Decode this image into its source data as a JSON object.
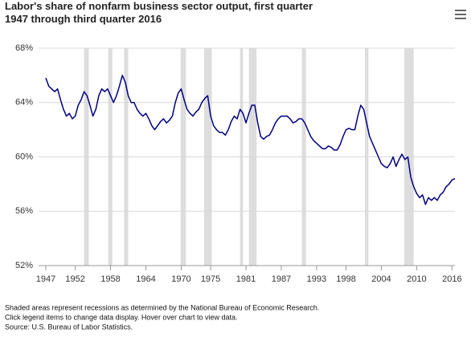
{
  "chart_data": {
    "type": "line",
    "title": "Labor's share of nonfarm business sector output, first quarter 1947 through third quarter 2016",
    "notes": [
      "Shaded areas represent recessions as determined by the National Bureau of Economic Research.",
      "Click legend items to change data display. Hover over chart to view data.",
      "Source: U.S. Bureau of Labor Statistics."
    ],
    "x": [
      1947,
      1947.5,
      1948,
      1948.5,
      1949,
      1949.5,
      1950,
      1950.5,
      1951,
      1951.5,
      1952,
      1952.5,
      1953,
      1953.5,
      1954,
      1954.5,
      1955,
      1955.5,
      1956,
      1956.5,
      1957,
      1957.5,
      1958,
      1958.5,
      1959,
      1959.5,
      1960,
      1960.5,
      1961,
      1961.5,
      1962,
      1962.5,
      1963,
      1963.5,
      1964,
      1964.5,
      1965,
      1965.5,
      1966,
      1966.5,
      1967,
      1967.5,
      1968,
      1968.5,
      1969,
      1969.5,
      1970,
      1970.5,
      1971,
      1971.5,
      1972,
      1972.5,
      1973,
      1973.5,
      1974,
      1974.5,
      1975,
      1975.5,
      1976,
      1976.5,
      1977,
      1977.5,
      1978,
      1978.5,
      1979,
      1979.5,
      1980,
      1980.5,
      1981,
      1981.5,
      1982,
      1982.5,
      1983,
      1983.5,
      1984,
      1984.5,
      1985,
      1985.5,
      1986,
      1986.5,
      1987,
      1987.5,
      1988,
      1988.5,
      1989,
      1989.5,
      1990,
      1990.5,
      1991,
      1991.5,
      1992,
      1992.5,
      1993,
      1993.5,
      1994,
      1994.5,
      1995,
      1995.5,
      1996,
      1996.5,
      1997,
      1997.5,
      1998,
      1998.5,
      1999,
      1999.5,
      2000,
      2000.5,
      2001,
      2001.5,
      2002,
      2002.5,
      2003,
      2003.5,
      2004,
      2004.5,
      2005,
      2005.5,
      2006,
      2006.5,
      2007,
      2007.5,
      2008,
      2008.5,
      2009,
      2009.5,
      2010,
      2010.5,
      2011,
      2011.5,
      2012,
      2012.5,
      2013,
      2013.5,
      2014,
      2014.5,
      2015,
      2015.5,
      2016,
      2016.5
    ],
    "series": [
      {
        "color": "#000080",
        "values": [
          65.8,
          65.2,
          65.0,
          64.8,
          65.0,
          64.2,
          63.5,
          63.0,
          63.2,
          62.8,
          63.0,
          63.8,
          64.2,
          64.8,
          64.5,
          63.8,
          63.0,
          63.5,
          64.5,
          65.0,
          64.8,
          65.0,
          64.5,
          64.0,
          64.5,
          65.2,
          66.0,
          65.5,
          64.5,
          64.0,
          64.0,
          63.5,
          63.2,
          63.0,
          63.2,
          62.8,
          62.3,
          62.0,
          62.3,
          62.6,
          62.8,
          62.5,
          62.7,
          63.0,
          64.0,
          64.7,
          65.0,
          64.2,
          63.5,
          63.2,
          63.0,
          63.3,
          63.5,
          64.0,
          64.3,
          64.5,
          63.0,
          62.3,
          62.0,
          61.8,
          61.8,
          61.6,
          62.0,
          62.6,
          63.0,
          62.8,
          63.5,
          63.2,
          62.5,
          63.2,
          63.8,
          63.8,
          62.5,
          61.5,
          61.3,
          61.5,
          61.6,
          62.0,
          62.5,
          62.8,
          63.0,
          63.0,
          63.0,
          62.8,
          62.5,
          62.6,
          62.8,
          62.8,
          62.5,
          62.0,
          61.5,
          61.2,
          61.0,
          60.8,
          60.6,
          60.6,
          60.8,
          60.7,
          60.5,
          60.5,
          60.9,
          61.5,
          62.0,
          62.1,
          62.0,
          62.0,
          63.0,
          63.8,
          63.5,
          62.5,
          61.5,
          61.0,
          60.5,
          60.0,
          59.5,
          59.3,
          59.2,
          59.5,
          60.0,
          59.3,
          59.8,
          60.2,
          59.8,
          60.0,
          58.5,
          57.8,
          57.3,
          57.0,
          57.2,
          56.5,
          57.0,
          56.8,
          57.0,
          56.8,
          57.2,
          57.4,
          57.8,
          58.0,
          58.3,
          58.4
        ]
      }
    ],
    "recessions": [
      [
        1953.5,
        1954.3
      ],
      [
        1957.6,
        1958.3
      ],
      [
        1960.3,
        1961.0
      ],
      [
        1969.9,
        1970.8
      ],
      [
        1973.9,
        1975.2
      ],
      [
        1980.0,
        1980.5
      ],
      [
        1981.5,
        1982.8
      ],
      [
        1990.5,
        1991.2
      ],
      [
        2001.2,
        2001.8
      ],
      [
        2007.9,
        2009.5
      ]
    ],
    "recession_color": "#dddddd",
    "xlim": [
      1947,
      2016.5
    ],
    "xticks": [
      1947,
      1952,
      1958,
      1964,
      1970,
      1975,
      1981,
      1987,
      1993,
      1998,
      2004,
      2010,
      2016
    ],
    "ylim": [
      52,
      68
    ],
    "yticks": [
      {
        "value": 52,
        "label": "52%"
      },
      {
        "value": 56,
        "label": "56%"
      },
      {
        "value": 60,
        "label": "60%"
      },
      {
        "value": 64,
        "label": "64%"
      },
      {
        "value": 68,
        "label": "68%"
      }
    ],
    "grid": true
  }
}
